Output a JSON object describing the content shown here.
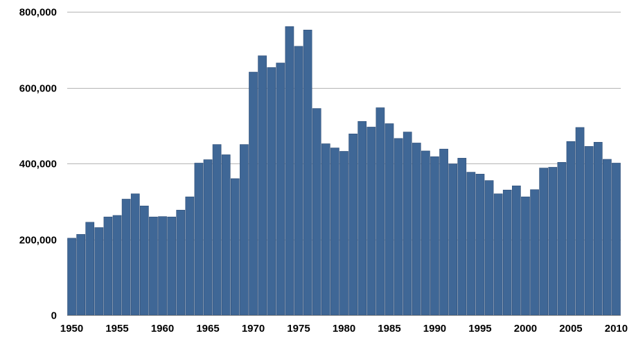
{
  "chart_data": {
    "type": "bar",
    "title": "",
    "xlabel": "",
    "ylabel": "",
    "ylim": [
      0,
      800000
    ],
    "y_ticks": [
      0,
      200000,
      400000,
      600000,
      800000
    ],
    "y_tick_labels": [
      "0",
      "200,000",
      "400,000",
      "600,000",
      "800,000"
    ],
    "x_tick_labels": [
      "1950",
      "1955",
      "1960",
      "1965",
      "1970",
      "1975",
      "1980",
      "1985",
      "1990",
      "1995",
      "2000",
      "2005",
      "2010"
    ],
    "grid": "horizontal",
    "bar_color": "#3f6796",
    "categories": [
      1950,
      1951,
      1952,
      1953,
      1954,
      1955,
      1956,
      1957,
      1958,
      1959,
      1960,
      1961,
      1962,
      1963,
      1964,
      1965,
      1966,
      1967,
      1968,
      1969,
      1970,
      1971,
      1972,
      1973,
      1974,
      1975,
      1976,
      1977,
      1978,
      1979,
      1980,
      1981,
      1982,
      1983,
      1984,
      1985,
      1986,
      1987,
      1988,
      1989,
      1990,
      1991,
      1992,
      1993,
      1994,
      1995,
      1996,
      1997,
      1998,
      1999,
      2000,
      2001,
      2002,
      2003,
      2004,
      2005,
      2006,
      2007,
      2008,
      2009,
      2010
    ],
    "values": [
      203000,
      213000,
      245000,
      231000,
      259000,
      263000,
      306000,
      320000,
      288000,
      259000,
      260000,
      259000,
      277000,
      312000,
      401000,
      410000,
      450000,
      423000,
      360000,
      450000,
      641000,
      684000,
      653000,
      665000,
      761000,
      709000,
      752000,
      545000,
      452000,
      441000,
      432000,
      478000,
      511000,
      496000,
      547000,
      505000,
      466000,
      483000,
      454000,
      433000,
      418000,
      438000,
      399000,
      414000,
      377000,
      372000,
      355000,
      320000,
      330000,
      341000,
      312000,
      331000,
      388000,
      390000,
      403000,
      458000,
      495000,
      445000,
      456000,
      411000,
      401000
    ]
  }
}
